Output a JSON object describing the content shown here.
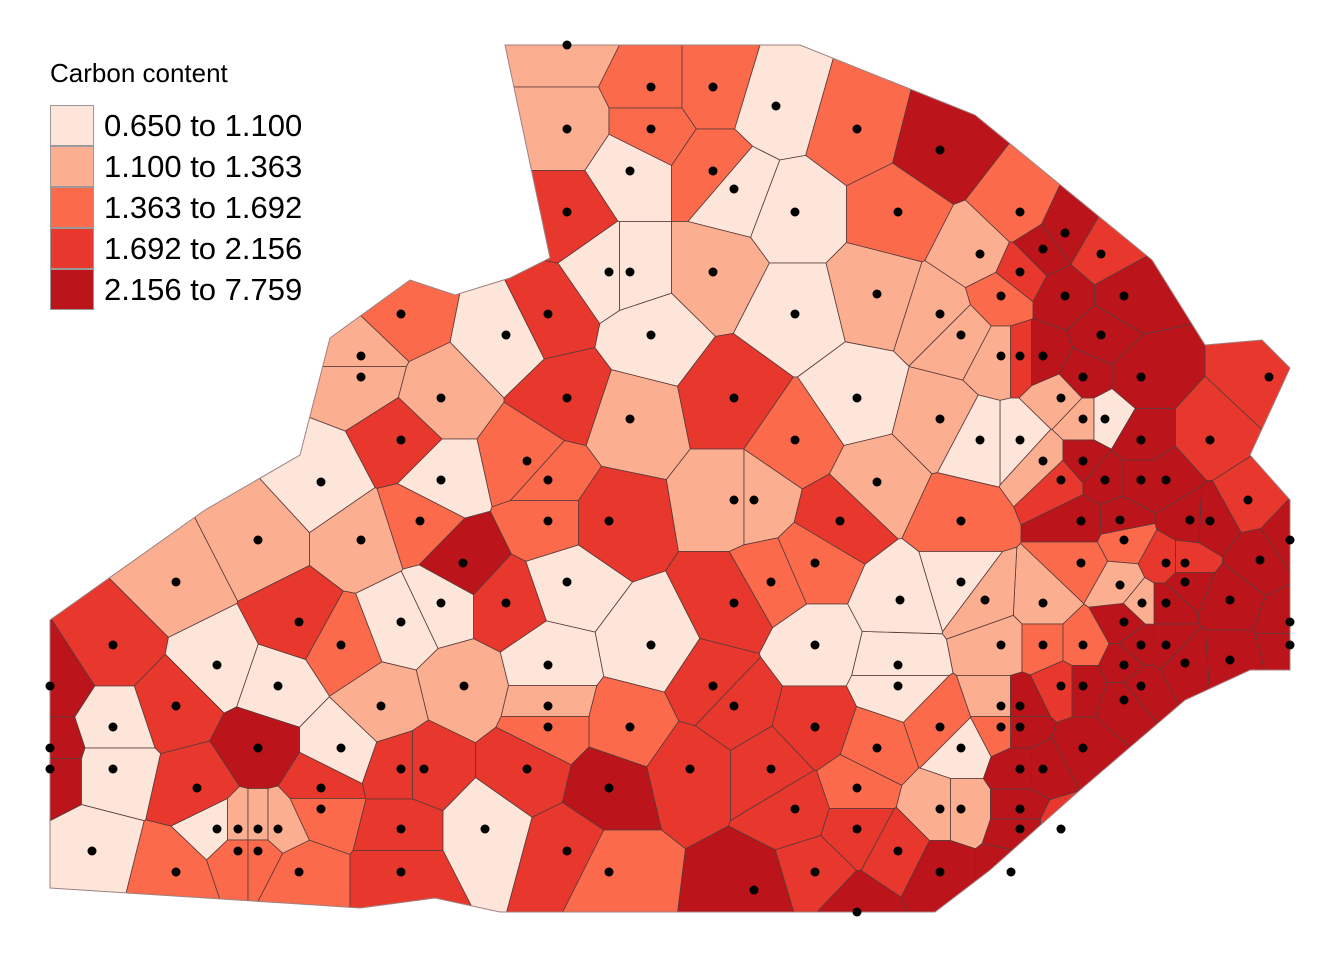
{
  "legend": {
    "title": "Carbon content",
    "classes": [
      {
        "label": "0.650 to 1.100",
        "color": "#fee5d9"
      },
      {
        "label": "1.100 to 1.363",
        "color": "#fcae91"
      },
      {
        "label": "1.363 to 1.692",
        "color": "#fb6a4a"
      },
      {
        "label": "1.692 to 2.156",
        "color": "#e8372c"
      },
      {
        "label": "2.156 to 7.759",
        "color": "#bb141b"
      }
    ]
  },
  "map": {
    "type": "voronoi-choropleth",
    "variable": "Carbon content",
    "border_color": "#5a3a3a",
    "point_color": "#000000"
  }
}
